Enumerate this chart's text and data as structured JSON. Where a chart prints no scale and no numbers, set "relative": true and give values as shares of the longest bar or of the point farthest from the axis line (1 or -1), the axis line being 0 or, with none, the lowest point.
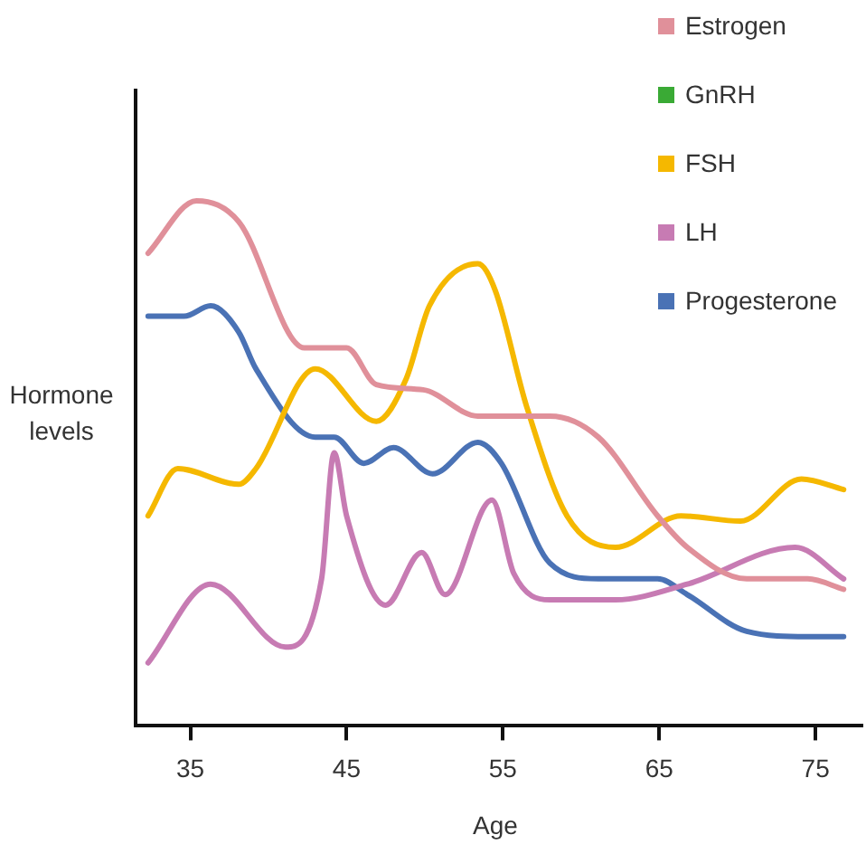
{
  "chart_data": {
    "type": "line",
    "xlabel": "Age",
    "ylabel": "Hormone levels",
    "relative": true,
    "xlim": [
      31.5,
      78
    ],
    "xticks": [
      35,
      45,
      55,
      65,
      75
    ],
    "legend": "top right",
    "marker": "none",
    "grid": false,
    "series": [
      {
        "name": "Estrogen",
        "color": "#e0909a",
        "x": [
          32.3,
          35.4,
          38.1,
          42.3,
          45,
          46.9,
          49.9,
          53.4,
          58,
          61.1,
          64.9,
          66.8,
          70.6,
          74.5,
          76.8
        ],
        "values": [
          0.9,
          1,
          0.96,
          0.72,
          0.72,
          0.65,
          0.64,
          0.59,
          0.59,
          0.55,
          0.4,
          0.34,
          0.28,
          0.28,
          0.26
        ]
      },
      {
        "name": "GnRH",
        "color": "#3aaa35"
      },
      {
        "name": "FSH",
        "color": "#f5b800",
        "x": [
          32.3,
          34.2,
          38.1,
          39.2,
          43,
          46.9,
          48.8,
          50.3,
          53.4,
          54.5,
          56.5,
          59.1,
          62.2,
          66.4,
          70.2,
          74.1,
          76.8
        ],
        "values": [
          0.4,
          0.49,
          0.46,
          0.49,
          0.68,
          0.58,
          0.66,
          0.8,
          0.88,
          0.83,
          0.61,
          0.4,
          0.34,
          0.4,
          0.39,
          0.47,
          0.45
        ]
      },
      {
        "name": "LH",
        "color": "#c77bb3",
        "x": [
          32.3,
          36.3,
          41.1,
          43.4,
          44.2,
          45,
          47.5,
          49.8,
          51.3,
          54.3,
          55.7,
          58,
          62.2,
          66.8,
          73.7,
          76.8
        ],
        "values": [
          0.12,
          0.27,
          0.15,
          0.28,
          0.52,
          0.4,
          0.23,
          0.33,
          0.25,
          0.43,
          0.29,
          0.24,
          0.24,
          0.27,
          0.34,
          0.28
        ]
      },
      {
        "name": "Progesterone",
        "color": "#4a72b5",
        "x": [
          32.3,
          34.6,
          36.3,
          38.1,
          39.2,
          43,
          44.2,
          46.1,
          48,
          50.5,
          53.4,
          54.9,
          58,
          61.1,
          64.9,
          66.8,
          70.6,
          74.5,
          76.8
        ],
        "values": [
          0.78,
          0.78,
          0.8,
          0.75,
          0.68,
          0.55,
          0.55,
          0.5,
          0.53,
          0.48,
          0.54,
          0.5,
          0.31,
          0.28,
          0.28,
          0.25,
          0.18,
          0.17,
          0.17
        ]
      }
    ]
  }
}
